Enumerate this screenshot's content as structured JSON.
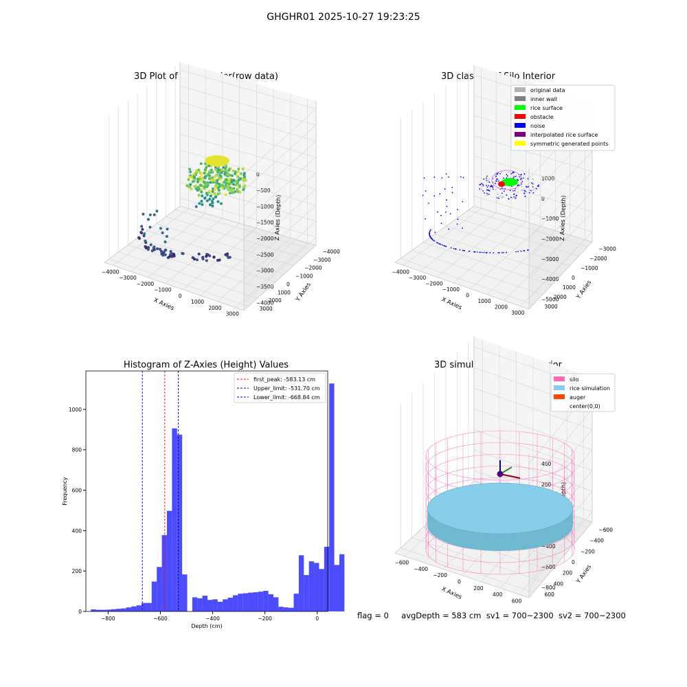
{
  "figure": {
    "suptitle": "GHGHR01 2025-10-27 19:23:25"
  },
  "chart_data": [
    {
      "type": "scatter",
      "title": "3D Plot of Silo Interior(row data)",
      "xlabel": "X Axies",
      "ylabel": "Y Axies",
      "zlabel": "Z Axies (Depth)",
      "xticks": [
        "−4000",
        "−3000",
        "−2000",
        "−1000",
        "0",
        "1000",
        "2000",
        "3000"
      ],
      "yticks": [
        "−4000",
        "−3000",
        "−2000",
        "−1000",
        "0",
        "1000",
        "2000",
        "3000"
      ],
      "zticks": [
        "0",
        "−500",
        "−1000",
        "−1500",
        "−2000",
        "−2500",
        "−3000",
        "−3500",
        "−4000"
      ],
      "colormap": "viridis"
    },
    {
      "type": "scatter",
      "title": "3D classify of Silo Interior",
      "xlabel": "X Axies",
      "ylabel": "Y Axies",
      "zlabel": "Z Axies (Depth)",
      "xticks": [
        "−4000",
        "−3000",
        "−2000",
        "−1000",
        "0",
        "1000",
        "2000",
        "3000"
      ],
      "yticks": [
        "−3000",
        "−2000",
        "−1000",
        "0",
        "1000",
        "2000",
        "3000"
      ],
      "zticks": [
        "1000",
        "0",
        "−1000",
        "−2000",
        "−3000",
        "−4000",
        "−5000"
      ],
      "legend": [
        {
          "label": "original data",
          "color": "#b3b3b3"
        },
        {
          "label": "inner wall",
          "color": "#808080"
        },
        {
          "label": "rice surface",
          "color": "#00ff00"
        },
        {
          "label": "obstacle",
          "color": "#ff0000"
        },
        {
          "label": "noise",
          "color": "#0000ff"
        },
        {
          "label": "interpolated rice surface",
          "color": "#800080"
        },
        {
          "label": "symmetric generated points",
          "color": "#ffff00"
        }
      ],
      "legend_position": "top-right"
    },
    {
      "type": "bar",
      "title": "Histogram of Z-Axies (Height) Values",
      "xlabel": "Depth (cm)",
      "ylabel": "Frequency",
      "xlim": [
        -885,
        40
      ],
      "ylim": [
        0,
        1190
      ],
      "xticks": [
        -800,
        -600,
        -400,
        -200,
        0
      ],
      "xtick_labels": [
        "−800",
        "−600",
        "−400",
        "−200",
        "0"
      ],
      "yticks": [
        0,
        200,
        400,
        600,
        800,
        1000
      ],
      "bin_start": -866,
      "bin_width": 19.4,
      "values": [
        10,
        8,
        8,
        9,
        11,
        13,
        15,
        20,
        25,
        30,
        42,
        42,
        148,
        220,
        378,
        498,
        906,
        875,
        183,
        0,
        70,
        65,
        78,
        57,
        60,
        48,
        60,
        68,
        80,
        88,
        90,
        93,
        95,
        98,
        102,
        85,
        70,
        23,
        20,
        18,
        88,
        278,
        180,
        248,
        240,
        210,
        320,
        1128,
        230,
        283
      ],
      "bar_color": "#0000ff",
      "vlines": [
        {
          "x": -583.13,
          "color": "#ff0000",
          "label": "first_peak: -583.13 cm"
        },
        {
          "x": -531.7,
          "color": "#00008b",
          "label": "Upper_limit: -531.70 cm"
        },
        {
          "x": -668.84,
          "color": "#0000ff",
          "label": "Lower_limit: -668.84 cm"
        }
      ],
      "legend_position": "top-right"
    },
    {
      "type": "surface",
      "title": "3D simulation of Silo Interior",
      "xlabel": "X Axies",
      "ylabel": "Y Axies",
      "zlabel": "Z Axies (Depth)",
      "xticks": [
        "−600",
        "−400",
        "−200",
        "0",
        "200",
        "400",
        "600"
      ],
      "yticks": [
        "−600",
        "−400",
        "−200",
        "0",
        "200",
        "400",
        "600"
      ],
      "zticks": [
        "400",
        "200",
        "0",
        "−200",
        "−400",
        "−600",
        "−800"
      ],
      "legend": [
        {
          "label": "silo",
          "color": "#ff69b4"
        },
        {
          "label": "rice simulation",
          "color": "#87ceeb"
        },
        {
          "label": "auger",
          "color": "#ff4500"
        },
        {
          "label": "center(0,0)",
          "color": "#ffffff"
        }
      ],
      "legend_position": "top-right"
    }
  ],
  "footer": {
    "flag": "flag = 0",
    "avg": "avgDepth = 583 cm",
    "sv1": "sv1 = 700~2300",
    "sv2": "sv2 = 700~2300"
  }
}
